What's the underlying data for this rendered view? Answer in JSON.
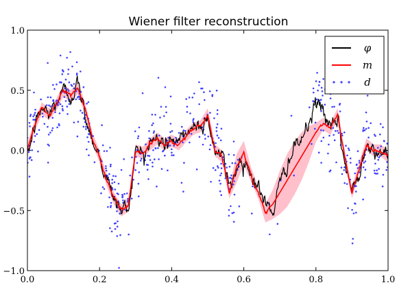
{
  "chart_data": {
    "type": "line",
    "title": "Wiener filter reconstruction",
    "xlabel": "",
    "ylabel": "",
    "xlim": [
      0.0,
      1.0
    ],
    "ylim": [
      -1.0,
      1.0
    ],
    "xticks": [
      0.0,
      0.2,
      0.4,
      0.6,
      0.8,
      1.0
    ],
    "yticks": [
      -1.0,
      -0.5,
      0.0,
      0.5,
      1.0
    ],
    "xtick_labels": [
      "0.0",
      "0.2",
      "0.4",
      "0.6",
      "0.8",
      "1.0"
    ],
    "ytick_labels": [
      "−1.0",
      "−0.5",
      "0.0",
      "0.5",
      "1.0"
    ],
    "grid": false,
    "legend_position": "top-right",
    "legend": [
      {
        "label": "φ",
        "style": "line",
        "color": "#000000"
      },
      {
        "label": "m",
        "style": "line",
        "color": "#ff0000"
      },
      {
        "label": "d",
        "style": "markers",
        "color": "#4040ff"
      }
    ],
    "colors": {
      "phi": "#000000",
      "m": "#ff0000",
      "d": "#4040ff",
      "band": "#ffc0cb"
    },
    "keypoints": {
      "x": [
        0.0,
        0.02,
        0.04,
        0.06,
        0.08,
        0.1,
        0.12,
        0.14,
        0.16,
        0.18,
        0.2,
        0.22,
        0.24,
        0.26,
        0.28,
        0.3,
        0.32,
        0.34,
        0.36,
        0.38,
        0.4,
        0.42,
        0.44,
        0.46,
        0.48,
        0.5,
        0.52,
        0.54,
        0.56,
        0.58,
        0.6,
        0.62,
        0.64,
        0.66,
        0.68,
        0.7,
        0.72,
        0.74,
        0.76,
        0.78,
        0.8,
        0.82,
        0.84,
        0.86,
        0.88,
        0.9,
        0.92,
        0.94,
        0.96,
        0.98,
        1.0
      ],
      "phi": [
        -0.05,
        0.2,
        0.35,
        0.3,
        0.4,
        0.5,
        0.45,
        0.55,
        0.3,
        0.1,
        -0.05,
        -0.25,
        -0.4,
        -0.5,
        -0.48,
        0.0,
        -0.02,
        0.05,
        0.1,
        0.05,
        0.1,
        0.05,
        0.15,
        0.2,
        0.2,
        0.28,
        0.0,
        -0.05,
        -0.3,
        -0.15,
        -0.05,
        -0.2,
        -0.3,
        -0.45,
        -0.5,
        -0.3,
        -0.1,
        0.0,
        0.1,
        0.2,
        0.4,
        0.35,
        0.15,
        0.25,
        -0.1,
        -0.35,
        -0.2,
        0.1,
        0.0,
        0.0,
        -0.1
      ],
      "m": [
        0.0,
        0.2,
        0.35,
        0.3,
        0.38,
        0.5,
        0.45,
        0.52,
        0.35,
        0.1,
        -0.05,
        -0.25,
        -0.4,
        -0.5,
        -0.45,
        0.0,
        -0.02,
        0.05,
        0.1,
        0.05,
        0.08,
        0.05,
        0.12,
        0.18,
        0.2,
        0.3,
        0.0,
        -0.05,
        -0.35,
        -0.15,
        -0.02,
        -0.2,
        -0.35,
        -0.52,
        -0.45,
        -0.35,
        -0.25,
        -0.15,
        -0.05,
        0.05,
        0.15,
        0.22,
        0.18,
        0.3,
        -0.05,
        -0.35,
        -0.15,
        0.05,
        0.0,
        0.0,
        -0.05
      ],
      "sigma": [
        0.06,
        0.05,
        0.05,
        0.05,
        0.05,
        0.05,
        0.05,
        0.05,
        0.05,
        0.05,
        0.05,
        0.05,
        0.05,
        0.05,
        0.06,
        0.05,
        0.05,
        0.05,
        0.05,
        0.05,
        0.05,
        0.05,
        0.05,
        0.05,
        0.05,
        0.05,
        0.05,
        0.05,
        0.05,
        0.12,
        0.1,
        0.06,
        0.05,
        0.08,
        0.12,
        0.18,
        0.22,
        0.22,
        0.2,
        0.15,
        0.08,
        0.05,
        0.05,
        0.05,
        0.05,
        0.05,
        0.05,
        0.05,
        0.05,
        0.05,
        0.05
      ]
    }
  }
}
